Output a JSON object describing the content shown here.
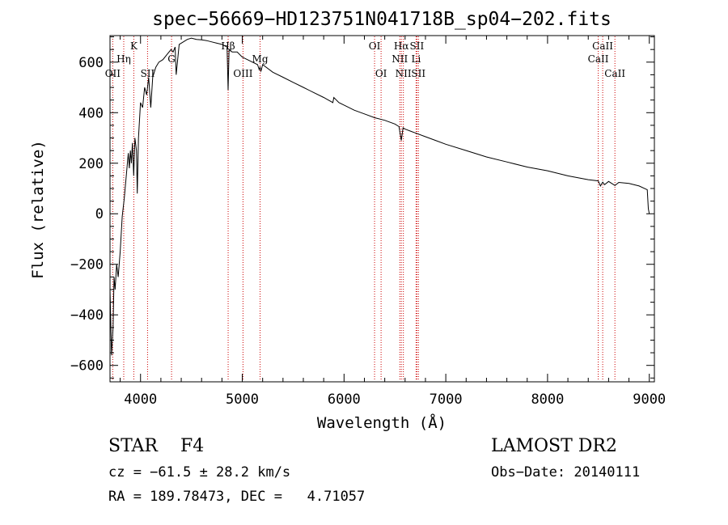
{
  "chart_data": {
    "type": "line",
    "title": "spec−56669−HD123751N041718B_sp04−202.fits",
    "xlabel": "Wavelength (Å)",
    "ylabel": "Flux (relative)",
    "xlim": [
      3700,
      9050
    ],
    "ylim": [
      -665,
      705
    ],
    "xticks": [
      {
        "value": 4000,
        "label": "4000"
      },
      {
        "value": 5000,
        "label": "5000"
      },
      {
        "value": 6000,
        "label": "6000"
      },
      {
        "value": 7000,
        "label": "7000"
      },
      {
        "value": 8000,
        "label": "8000"
      },
      {
        "value": 9000,
        "label": "9000"
      }
    ],
    "yticks": [
      {
        "value": -600,
        "label": "−600"
      },
      {
        "value": -400,
        "label": "−400"
      },
      {
        "value": -200,
        "label": "−200"
      },
      {
        "value": 0,
        "label": "0"
      },
      {
        "value": 200,
        "label": "200"
      },
      {
        "value": 400,
        "label": "400"
      },
      {
        "value": 600,
        "label": "600"
      }
    ],
    "series": [
      {
        "name": "spectrum",
        "x": [
          3700,
          3715,
          3730,
          3740,
          3750,
          3765,
          3780,
          3800,
          3820,
          3840,
          3860,
          3880,
          3890,
          3900,
          3910,
          3920,
          3933,
          3945,
          3960,
          3968,
          3980,
          4000,
          4020,
          4040,
          4060,
          4080,
          4101,
          4120,
          4150,
          4180,
          4220,
          4260,
          4300,
          4320,
          4340,
          4350,
          4380,
          4420,
          4460,
          4500,
          4550,
          4600,
          4650,
          4700,
          4750,
          4800,
          4850,
          4861,
          4870,
          4900,
          4950,
          5000,
          5050,
          5100,
          5150,
          5167,
          5175,
          5184,
          5200,
          5300,
          5400,
          5500,
          5600,
          5700,
          5800,
          5890,
          5900,
          5950,
          6000,
          6100,
          6200,
          6300,
          6400,
          6500,
          6540,
          6563,
          6580,
          6600,
          6700,
          6800,
          6900,
          7000,
          7200,
          7400,
          7600,
          7800,
          8000,
          8200,
          8400,
          8498,
          8520,
          8542,
          8560,
          8600,
          8662,
          8700,
          8800,
          8900,
          8980,
          8990,
          9000
        ],
        "y": [
          -300,
          -560,
          -450,
          -250,
          -300,
          -200,
          -250,
          -150,
          -10,
          60,
          150,
          240,
          180,
          250,
          200,
          280,
          150,
          300,
          250,
          80,
          300,
          440,
          420,
          500,
          470,
          540,
          420,
          540,
          580,
          600,
          610,
          630,
          650,
          640,
          660,
          550,
          670,
          680,
          690,
          695,
          690,
          688,
          685,
          680,
          675,
          670,
          660,
          490,
          650,
          640,
          640,
          620,
          610,
          600,
          590,
          570,
          580,
          565,
          590,
          560,
          540,
          520,
          500,
          480,
          460,
          440,
          460,
          440,
          430,
          410,
          395,
          380,
          370,
          355,
          345,
          290,
          340,
          335,
          320,
          305,
          290,
          275,
          250,
          225,
          205,
          185,
          170,
          150,
          135,
          130,
          110,
          125,
          115,
          128,
          112,
          124,
          120,
          110,
          95,
          20,
          0
        ]
      }
    ],
    "annotations": [
      {
        "wavelength": 3727,
        "label": "OII",
        "row": 3
      },
      {
        "wavelength": 3835,
        "label": "Hη",
        "row": 2
      },
      {
        "wavelength": 3934,
        "label": "K",
        "row": 1
      },
      {
        "wavelength": 4069,
        "label": "SII",
        "row": 3
      },
      {
        "wavelength": 4305,
        "label": "G",
        "row": 2
      },
      {
        "wavelength": 4861,
        "label": "Hβ",
        "row": 1
      },
      {
        "wavelength": 5007,
        "label": "OIII",
        "row": 3
      },
      {
        "wavelength": 5175,
        "label": "Mg",
        "row": 2
      },
      {
        "wavelength": 6300,
        "label": "OI",
        "row": 1
      },
      {
        "wavelength": 6364,
        "label": "OI",
        "row": 3
      },
      {
        "wavelength": 6548,
        "label": "NII",
        "row": 2
      },
      {
        "wavelength": 6563,
        "label": "Hα",
        "row": 1
      },
      {
        "wavelength": 6583,
        "label": "NII",
        "row": 3
      },
      {
        "wavelength": 6708,
        "label": "Li",
        "row": 2
      },
      {
        "wavelength": 6716,
        "label": "SII",
        "row": 1
      },
      {
        "wavelength": 6731,
        "label": "SII",
        "row": 3
      },
      {
        "wavelength": 8498,
        "label": "CaII",
        "row": 2
      },
      {
        "wavelength": 8542,
        "label": "CaII",
        "row": 1
      },
      {
        "wavelength": 8662,
        "label": "CaII",
        "row": 3
      }
    ],
    "line_color": "#000000",
    "marker_color": "#cc0000",
    "grid": false,
    "legend": "none"
  },
  "info": {
    "class_text": "STAR    F4",
    "survey_text": "LAMOST DR2",
    "cz_text": "cz = −61.5 ± 28.2 km/s",
    "obs_text": "Obs−Date: 20140111",
    "radec_text": "RA = 189.78473, DEC =   4.71057"
  }
}
